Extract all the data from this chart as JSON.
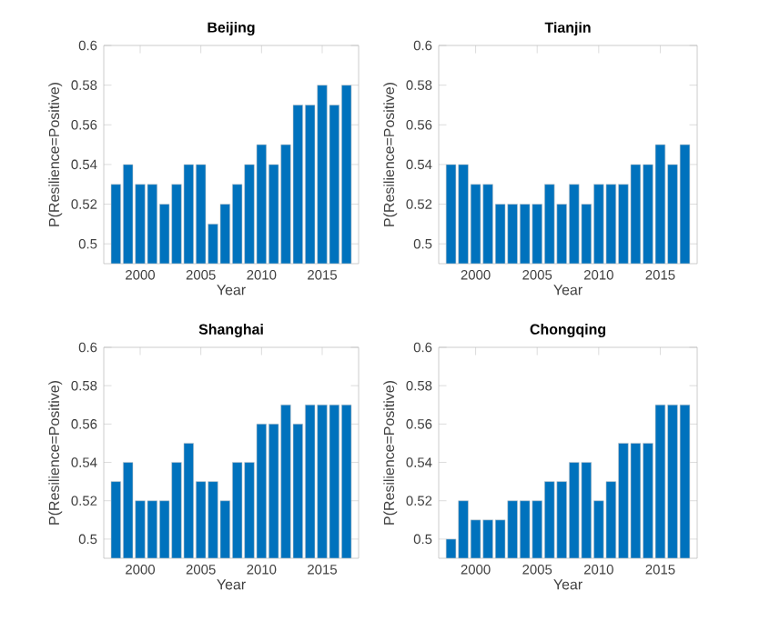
{
  "chart_data": [
    {
      "type": "bar",
      "title": "Beijing",
      "xlabel": "Year",
      "ylabel": "P(Resilience=Positive)",
      "color": "#0072bd",
      "x": [
        1998,
        1999,
        2000,
        2001,
        2002,
        2003,
        2004,
        2005,
        2006,
        2007,
        2008,
        2009,
        2010,
        2011,
        2012,
        2013,
        2014,
        2015,
        2016,
        2017
      ],
      "values": [
        0.53,
        0.54,
        0.53,
        0.53,
        0.52,
        0.53,
        0.54,
        0.54,
        0.51,
        0.52,
        0.53,
        0.54,
        0.55,
        0.54,
        0.55,
        0.57,
        0.57,
        0.58,
        0.57,
        0.58
      ],
      "xlim": [
        1997,
        2018
      ],
      "ylim": [
        0.49,
        0.6
      ],
      "xticks": [
        2000,
        2005,
        2010,
        2015
      ],
      "yticks": [
        0.5,
        0.52,
        0.54,
        0.56,
        0.58,
        0.6
      ]
    },
    {
      "type": "bar",
      "title": "Tianjin",
      "xlabel": "Year",
      "ylabel": "P(Resilience=Positive)",
      "color": "#0072bd",
      "x": [
        1998,
        1999,
        2000,
        2001,
        2002,
        2003,
        2004,
        2005,
        2006,
        2007,
        2008,
        2009,
        2010,
        2011,
        2012,
        2013,
        2014,
        2015,
        2016,
        2017
      ],
      "values": [
        0.54,
        0.54,
        0.53,
        0.53,
        0.52,
        0.52,
        0.52,
        0.52,
        0.53,
        0.52,
        0.53,
        0.52,
        0.53,
        0.53,
        0.53,
        0.54,
        0.54,
        0.55,
        0.54,
        0.55
      ],
      "xlim": [
        1997,
        2018
      ],
      "ylim": [
        0.49,
        0.6
      ],
      "xticks": [
        2000,
        2005,
        2010,
        2015
      ],
      "yticks": [
        0.5,
        0.52,
        0.54,
        0.56,
        0.58,
        0.6
      ]
    },
    {
      "type": "bar",
      "title": "Shanghai",
      "xlabel": "Year",
      "ylabel": "P(Resilience=Positive)",
      "color": "#0072bd",
      "x": [
        1998,
        1999,
        2000,
        2001,
        2002,
        2003,
        2004,
        2005,
        2006,
        2007,
        2008,
        2009,
        2010,
        2011,
        2012,
        2013,
        2014,
        2015,
        2016,
        2017
      ],
      "values": [
        0.53,
        0.54,
        0.52,
        0.52,
        0.52,
        0.54,
        0.55,
        0.53,
        0.53,
        0.52,
        0.54,
        0.54,
        0.56,
        0.56,
        0.57,
        0.56,
        0.57,
        0.57,
        0.57,
        0.57
      ],
      "xlim": [
        1997,
        2018
      ],
      "ylim": [
        0.49,
        0.6
      ],
      "xticks": [
        2000,
        2005,
        2010,
        2015
      ],
      "yticks": [
        0.5,
        0.52,
        0.54,
        0.56,
        0.58,
        0.6
      ]
    },
    {
      "type": "bar",
      "title": "Chongqing",
      "xlabel": "Year",
      "ylabel": "P(Resilience=Positive)",
      "color": "#0072bd",
      "x": [
        1998,
        1999,
        2000,
        2001,
        2002,
        2003,
        2004,
        2005,
        2006,
        2007,
        2008,
        2009,
        2010,
        2011,
        2012,
        2013,
        2014,
        2015,
        2016,
        2017
      ],
      "values": [
        0.5,
        0.52,
        0.51,
        0.51,
        0.51,
        0.52,
        0.52,
        0.52,
        0.53,
        0.53,
        0.54,
        0.54,
        0.52,
        0.53,
        0.55,
        0.55,
        0.55,
        0.57,
        0.57,
        0.57
      ],
      "xlim": [
        1997,
        2018
      ],
      "ylim": [
        0.49,
        0.6
      ],
      "xticks": [
        2000,
        2005,
        2010,
        2015
      ],
      "yticks": [
        0.5,
        0.52,
        0.54,
        0.56,
        0.58,
        0.6
      ]
    }
  ]
}
